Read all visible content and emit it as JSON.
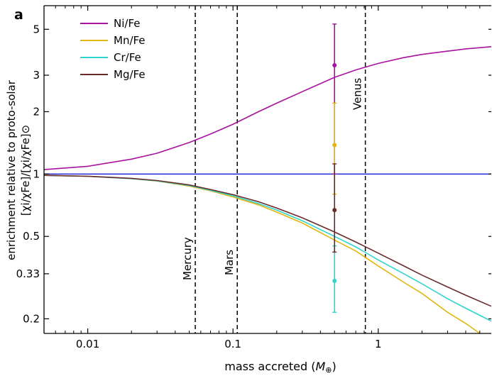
{
  "chart_data": {
    "type": "line",
    "panel_label": "a",
    "xlabel_text": "mass accreted (",
    "xlabel_symbol": "M",
    "xlabel_subscript": "⊕",
    "xlabel_close": ")",
    "ylabel_line1": "enrichment relative to proto-solar",
    "ylabel_line2": "[χi/χFe]/[χi/χFe]⊙",
    "xscale": "log",
    "yscale": "log",
    "xlim": [
      0.005,
      6
    ],
    "ylim": [
      0.17,
      6.5
    ],
    "x_ticks": [
      {
        "value": 0.01,
        "label": "0.01"
      },
      {
        "value": 0.1,
        "label": "0.1"
      },
      {
        "value": 1,
        "label": "1"
      }
    ],
    "y_ticks": [
      {
        "value": 0.2,
        "label": "0.2"
      },
      {
        "value": 0.33,
        "label": "0.33"
      },
      {
        "value": 0.5,
        "label": "0.5"
      },
      {
        "value": 1,
        "label": "1"
      },
      {
        "value": 2,
        "label": "2"
      },
      {
        "value": 3,
        "label": "3"
      },
      {
        "value": 5,
        "label": "5"
      }
    ],
    "legend_position": "top-left",
    "series": [
      {
        "name": "Ni/Fe",
        "color": "#a8129e",
        "x": [
          0.005,
          0.01,
          0.02,
          0.03,
          0.05,
          0.07,
          0.1,
          0.15,
          0.2,
          0.3,
          0.5,
          0.7,
          1,
          1.5,
          2,
          3,
          4,
          6
        ],
        "y": [
          1.05,
          1.09,
          1.18,
          1.26,
          1.42,
          1.56,
          1.74,
          2.0,
          2.2,
          2.5,
          2.93,
          3.18,
          3.42,
          3.65,
          3.78,
          3.92,
          4.02,
          4.12
        ]
      },
      {
        "name": "Mn/Fe",
        "color": "#e2b60f",
        "x": [
          0.005,
          0.01,
          0.02,
          0.03,
          0.05,
          0.07,
          0.1,
          0.15,
          0.2,
          0.3,
          0.5,
          0.7,
          1,
          1.5,
          2,
          3,
          4,
          5,
          6
        ],
        "y": [
          0.985,
          0.975,
          0.95,
          0.925,
          0.875,
          0.83,
          0.775,
          0.71,
          0.655,
          0.58,
          0.48,
          0.425,
          0.36,
          0.3,
          0.265,
          0.215,
          0.19,
          0.17,
          0.16
        ]
      },
      {
        "name": "Cr/Fe",
        "color": "#2fd4cf",
        "x": [
          0.005,
          0.01,
          0.02,
          0.03,
          0.05,
          0.07,
          0.1,
          0.15,
          0.2,
          0.3,
          0.5,
          0.7,
          1,
          1.5,
          2,
          3,
          4,
          6
        ],
        "y": [
          0.985,
          0.975,
          0.95,
          0.927,
          0.88,
          0.835,
          0.785,
          0.72,
          0.67,
          0.595,
          0.5,
          0.445,
          0.385,
          0.33,
          0.295,
          0.25,
          0.225,
          0.195
        ]
      },
      {
        "name": "Mg/Fe",
        "color": "#6b2b2b",
        "x": [
          0.005,
          0.01,
          0.02,
          0.03,
          0.05,
          0.07,
          0.1,
          0.15,
          0.2,
          0.3,
          0.5,
          0.7,
          1,
          1.5,
          2,
          3,
          4,
          6
        ],
        "y": [
          0.985,
          0.976,
          0.953,
          0.93,
          0.886,
          0.842,
          0.795,
          0.735,
          0.685,
          0.615,
          0.525,
          0.47,
          0.415,
          0.36,
          0.325,
          0.285,
          0.26,
          0.23
        ]
      }
    ],
    "reference_line": {
      "y": 1,
      "color": "#1a1ad6"
    },
    "planet_lines": [
      {
        "name": "Mercury",
        "x": 0.055
      },
      {
        "name": "Mars",
        "x": 0.107
      },
      {
        "name": "Venus",
        "x": 0.815
      }
    ],
    "error_points": [
      {
        "element": "Ni/Fe",
        "x": 0.5,
        "y": 3.35,
        "ylow": 1.0,
        "yhigh": 5.3,
        "color": "#a8129e"
      },
      {
        "element": "Mn/Fe",
        "x": 0.5,
        "y": 1.38,
        "ylow": 0.8,
        "yhigh": 2.2,
        "color": "#e2b60f"
      },
      {
        "element": "Cr/Fe",
        "x": 0.5,
        "y": 0.305,
        "ylow": 0.215,
        "yhigh": 0.45,
        "color": "#2fd4cf"
      },
      {
        "element": "Mg/Fe",
        "x": 0.5,
        "y": 0.67,
        "ylow": 0.42,
        "yhigh": 1.12,
        "color": "#6b2b2b"
      }
    ]
  }
}
